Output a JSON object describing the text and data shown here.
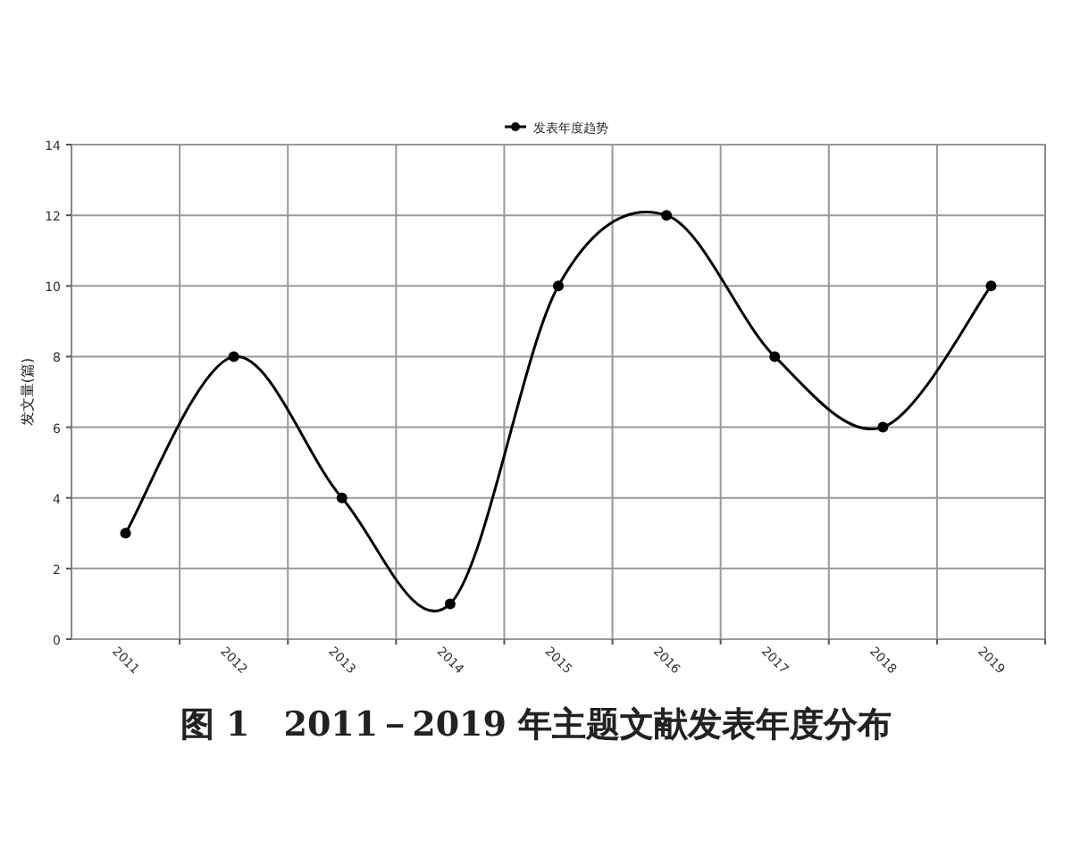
{
  "chart_data": {
    "type": "line",
    "title": "图 1　2011－2019 年主题文献发表年度分布",
    "ylabel": "发文量(篇)",
    "categories": [
      "2011",
      "2012",
      "2013",
      "2014",
      "2015",
      "2016",
      "2017",
      "2018",
      "2019"
    ],
    "series": [
      {
        "name": "发表年度趋势",
        "color": "#000000",
        "values": [
          3,
          8,
          4,
          1,
          10,
          12,
          8,
          6,
          10
        ]
      }
    ],
    "ylim": [
      0,
      14
    ],
    "yticks": [
      0,
      2,
      4,
      6,
      8,
      10,
      12,
      14
    ],
    "grid": true,
    "legend": "top",
    "marker": "circle",
    "line_style": "solid"
  }
}
